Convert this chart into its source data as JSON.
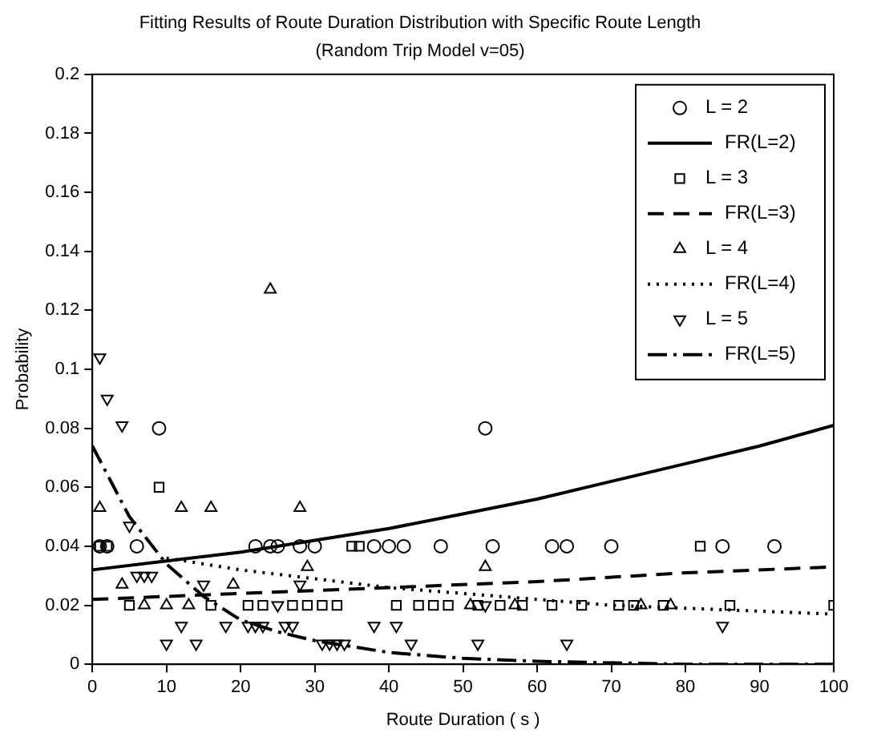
{
  "chart_data": {
    "type": "scatter",
    "title": "Fitting Results of Route Duration Distribution with Specific Route Length",
    "subtitle": "(Random Trip Model v=05)",
    "xlabel": "Route Duration ( s )",
    "ylabel": "Probability",
    "xlim": [
      0,
      100
    ],
    "xticks": [
      0,
      10,
      20,
      30,
      40,
      50,
      60,
      70,
      80,
      90,
      100
    ],
    "ylim": [
      0,
      0.2
    ],
    "yticks": [
      0,
      0.02,
      0.04,
      0.06,
      0.08,
      0.1,
      0.12,
      0.14,
      0.16,
      0.18,
      0.2
    ],
    "grid": false,
    "legend": "top right",
    "series": [
      {
        "name": "L = 2",
        "type": "scatter",
        "marker": "circle",
        "color": "#000000",
        "x": [
          1,
          2,
          6,
          9,
          22,
          24,
          25,
          28,
          30,
          38,
          40,
          42,
          47,
          53,
          54,
          62,
          64,
          70,
          85,
          92
        ],
        "values": [
          0.04,
          0.04,
          0.04,
          0.08,
          0.04,
          0.04,
          0.04,
          0.04,
          0.04,
          0.04,
          0.04,
          0.04,
          0.04,
          0.08,
          0.04,
          0.04,
          0.04,
          0.04,
          0.04,
          0.04
        ]
      },
      {
        "name": "FR(L=2)",
        "type": "line",
        "marker": "none",
        "line_style": "solid",
        "color": "#000000",
        "x": [
          0,
          10,
          20,
          30,
          40,
          50,
          60,
          70,
          80,
          90,
          100
        ],
        "values": [
          0.032,
          0.035,
          0.038,
          0.042,
          0.046,
          0.051,
          0.056,
          0.062,
          0.068,
          0.074,
          0.081
        ]
      },
      {
        "name": "L = 3",
        "type": "scatter",
        "marker": "square",
        "color": "#000000",
        "x": [
          1,
          2,
          5,
          9,
          16,
          21,
          23,
          27,
          29,
          31,
          33,
          35,
          36,
          41,
          44,
          46,
          48,
          52,
          55,
          58,
          62,
          66,
          71,
          73,
          77,
          82,
          86,
          100
        ],
        "values": [
          0.04,
          0.04,
          0.02,
          0.06,
          0.02,
          0.02,
          0.02,
          0.02,
          0.02,
          0.02,
          0.02,
          0.04,
          0.04,
          0.02,
          0.02,
          0.02,
          0.02,
          0.02,
          0.02,
          0.02,
          0.02,
          0.02,
          0.02,
          0.02,
          0.02,
          0.04,
          0.02,
          0.02
        ]
      },
      {
        "name": "FR(L=3)",
        "type": "line",
        "marker": "none",
        "line_style": "dashed",
        "color": "#000000",
        "x": [
          0,
          20,
          40,
          60,
          80,
          100
        ],
        "values": [
          0.022,
          0.024,
          0.026,
          0.028,
          0.031,
          0.033
        ]
      },
      {
        "name": "L = 4",
        "type": "scatter",
        "marker": "triangle",
        "color": "#000000",
        "x": [
          1,
          4,
          7,
          10,
          12,
          13,
          16,
          19,
          24,
          28,
          29,
          51,
          53,
          57,
          74,
          78
        ],
        "values": [
          0.053,
          0.027,
          0.02,
          0.02,
          0.053,
          0.02,
          0.053,
          0.027,
          0.127,
          0.053,
          0.033,
          0.02,
          0.033,
          0.02,
          0.02,
          0.02
        ]
      },
      {
        "name": "FR(L=4)",
        "type": "line",
        "marker": "none",
        "line_style": "dotted",
        "color": "#000000",
        "x": [
          10,
          20,
          30,
          40,
          50,
          60,
          70,
          80,
          90,
          100
        ],
        "values": [
          0.036,
          0.032,
          0.029,
          0.026,
          0.024,
          0.022,
          0.02,
          0.019,
          0.018,
          0.017
        ]
      },
      {
        "name": "L = 5",
        "type": "scatter",
        "marker": "triangle-down",
        "color": "#000000",
        "x": [
          1,
          2,
          4,
          5,
          6,
          7,
          8,
          10,
          12,
          14,
          15,
          18,
          21,
          22,
          23,
          25,
          26,
          27,
          28,
          31,
          32,
          33,
          34,
          38,
          41,
          43,
          52,
          53,
          64,
          85
        ],
        "values": [
          0.104,
          0.09,
          0.081,
          0.047,
          0.03,
          0.03,
          0.03,
          0.007,
          0.013,
          0.007,
          0.027,
          0.013,
          0.013,
          0.013,
          0.013,
          0.02,
          0.013,
          0.013,
          0.027,
          0.007,
          0.007,
          0.007,
          0.007,
          0.013,
          0.013,
          0.007,
          0.007,
          0.02,
          0.007,
          0.013
        ]
      },
      {
        "name": "FR(L=5)",
        "type": "line",
        "marker": "none",
        "line_style": "dashdot",
        "color": "#000000",
        "x": [
          0,
          5,
          10,
          15,
          20,
          25,
          30,
          40,
          50,
          60,
          80,
          100
        ],
        "values": [
          0.074,
          0.05,
          0.034,
          0.023,
          0.015,
          0.011,
          0.008,
          0.004,
          0.002,
          0.001,
          0,
          0
        ]
      }
    ]
  }
}
